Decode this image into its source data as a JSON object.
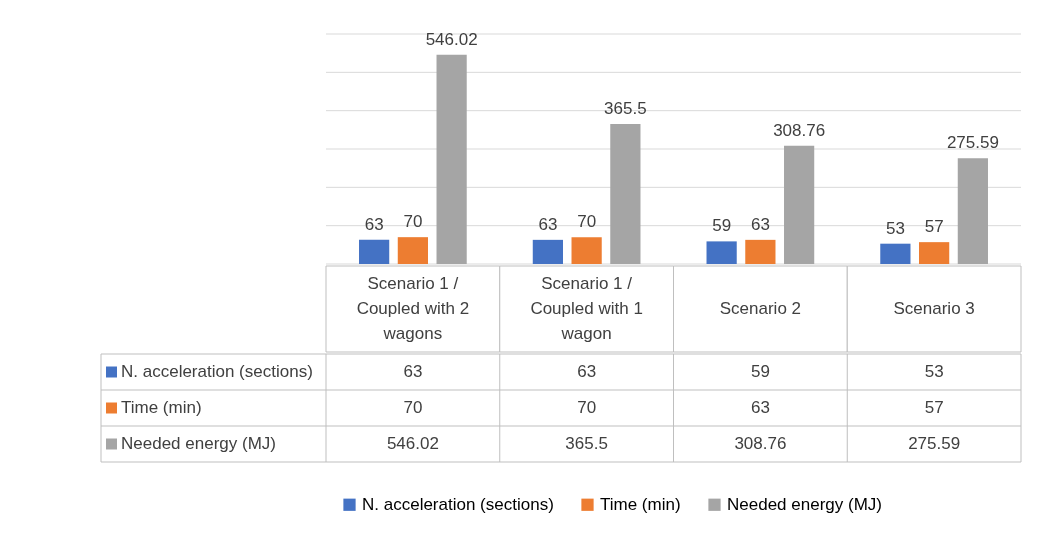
{
  "chart_data": [
    {
      "type": "bar",
      "categories": [
        null,
        null,
        null,
        null
      ],
      "series": [
        {
          "name": "N. acceleration (sections)",
          "color": "#4472c4",
          "values": [
            63,
            63,
            59,
            53
          ],
          "value_labels": [
            "63",
            "63",
            "59",
            "53"
          ]
        },
        {
          "name": "Time (min)",
          "color": "#ed7d31",
          "values": [
            70,
            70,
            63,
            57
          ],
          "value_labels": [
            "70",
            "70",
            "63",
            "57"
          ]
        },
        {
          "name": "Needed energy (MJ)",
          "color": "#a5a5a5",
          "values": [
            546.02,
            365.5,
            308.76,
            275.59
          ],
          "value_labels": [
            "546.02",
            "365.5",
            "308.76",
            "275.59"
          ]
        }
      ],
      "ylim": [
        0,
        600
      ],
      "yticks": [
        {
          "value": 0,
          "label": null
        },
        {
          "value": 100,
          "label": null
        },
        {
          "value": 200,
          "label": null
        },
        {
          "value": 300,
          "label": null
        },
        {
          "value": 400,
          "label": null
        },
        {
          "value": 500,
          "label": null
        },
        {
          "value": 600,
          "label": null
        }
      ],
      "grid": "y",
      "legend": "bottom",
      "tick_labels": false
    },
    {
      "type": "other",
      "categories": [
        "Scenario 1 / Coupled with 2 wagons",
        "Scenario 1 / Coupled with 1 wagon",
        "Scenario 2",
        "Scenario 3"
      ],
      "series": [
        {
          "name": "N. acceleration (sections)",
          "color": "#4472c4",
          "values": [
            63,
            63,
            59,
            53
          ]
        },
        {
          "name": "Time (min)",
          "color": "#ed7d31",
          "values": [
            70,
            70,
            63,
            57
          ]
        },
        {
          "name": "Needed energy (MJ)",
          "color": "#a5a5a5",
          "values": [
            546.02,
            365.5,
            308.76,
            275.59
          ]
        }
      ],
      "data_labels": true
    }
  ]
}
